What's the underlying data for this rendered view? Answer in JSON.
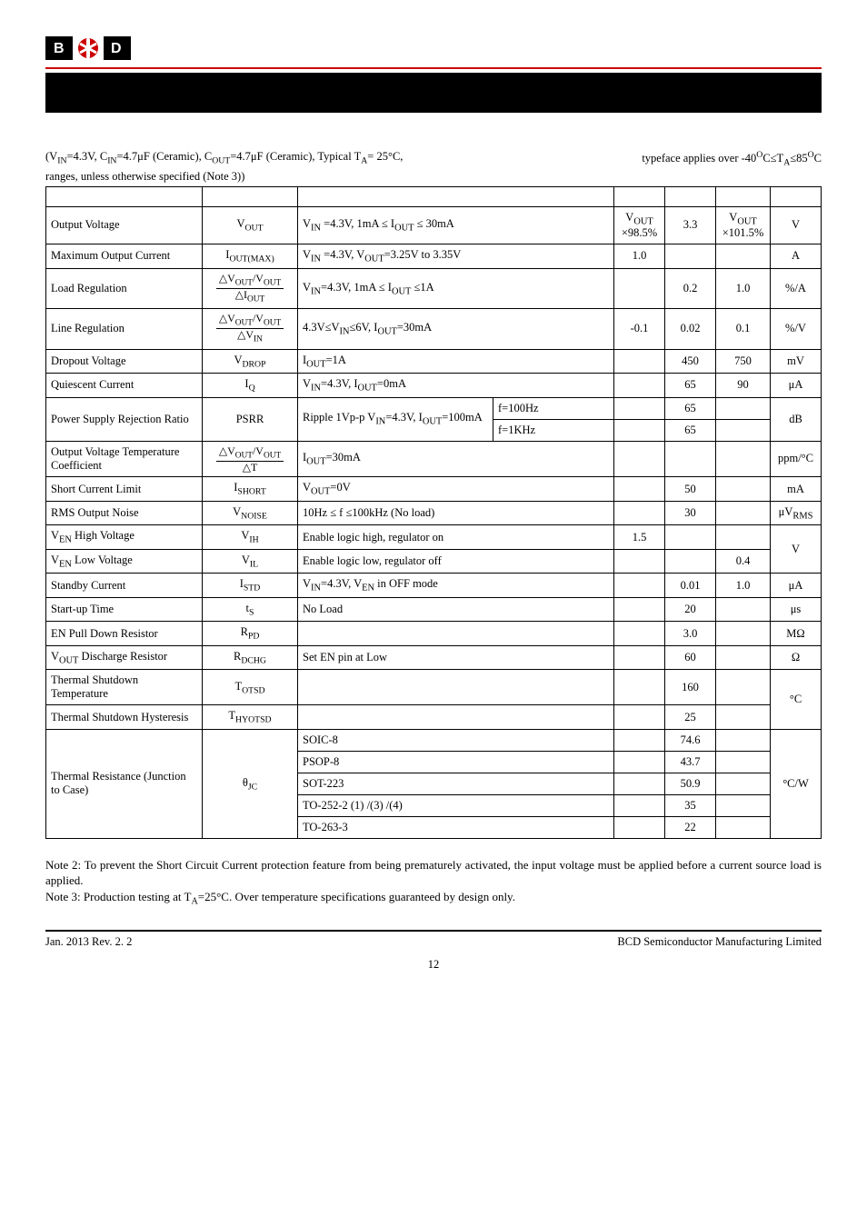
{
  "conditions_line1": "(V",
  "cond_in": "IN",
  "cond_eq1": "=4.3V, C",
  "cond_eq2": "=4.7μF (Ceramic), C",
  "cond_out": "OUT",
  "cond_eq3": "=4.7μF (Ceramic), Typical T",
  "cond_a": "A",
  "cond_eq4": "= 25°C,",
  "cond_tail": "typeface applies over -40",
  "cond_o": "O",
  "cond_tail2": "C≤T",
  "cond_tail3": "≤85",
  "cond_tail4": "C",
  "cond_note": "ranges, unless otherwise specified (Note 3))",
  "rows": {
    "r1": {
      "p": "Output Voltage",
      "s": "V",
      "ssub": "OUT",
      "c": "V<sub>IN</sub> =4.3V, 1mA ≤ I<sub>OUT</sub> ≤ 30mA",
      "min": "V<sub>OUT</sub> ×98.5%",
      "typ": "3.3",
      "max": "V<sub>OUT</sub> ×101.5%",
      "u": "V"
    },
    "r2": {
      "p": "Maximum Output Current",
      "s": "I",
      "ssub": "OUT(MAX)",
      "c": "V<sub>IN</sub> =4.3V, V<sub>OUT</sub>=3.25V to 3.35V",
      "min": "1.0",
      "typ": "",
      "max": "",
      "u": "A"
    },
    "r3": {
      "p": "Load Regulation",
      "c": "V<sub>IN</sub>=4.3V, 1mA ≤ I<sub>OUT</sub> ≤1A",
      "min": "",
      "typ": "0.2",
      "max": "1.0",
      "u": "%/A"
    },
    "r4": {
      "p": "Line Regulation",
      "c": "4.3V≤V<sub>IN</sub>≤6V, I<sub>OUT</sub>=30mA",
      "min": "-0.1",
      "typ": "0.02",
      "max": "0.1",
      "u": "%/V"
    },
    "r5": {
      "p": "Dropout Voltage",
      "s": "V",
      "ssub": "DROP",
      "c": "I<sub>OUT</sub>=1A",
      "min": "",
      "typ": "450",
      "max": "750",
      "u": "mV"
    },
    "r6": {
      "p": "Quiescent Current",
      "s": "I",
      "ssub": "Q",
      "c": "V<sub>IN</sub>=4.3V, I<sub>OUT</sub>=0mA",
      "min": "",
      "typ": "65",
      "max": "90",
      "u": "μA"
    },
    "r7": {
      "p": "Power Supply Rejection Ratio",
      "s": "PSRR",
      "c1a": "Ripple 1Vp-p V<sub>IN</sub>=4.3V, I<sub>OUT</sub>=100mA",
      "c1b": "f=100Hz",
      "c2b": "f=1KHz",
      "typ1": "65",
      "typ2": "65",
      "u": "dB"
    },
    "r8": {
      "p": "Output Voltage Temperature Coefficient",
      "c": "I<sub>OUT</sub>=30mA",
      "u": "ppm/°C"
    },
    "r9": {
      "p": "Short Current Limit",
      "s": "I",
      "ssub": "SHORT",
      "c": "V<sub>OUT</sub>=0V",
      "typ": "50",
      "u": "mA"
    },
    "r10": {
      "p": "RMS Output Noise",
      "s": "V",
      "ssub": "NOISE",
      "c": "10Hz ≤ f ≤100kHz (No load)",
      "typ": "30",
      "u": "μV<sub>RMS</sub>"
    },
    "r11": {
      "p": "V<sub>EN</sub> High Voltage",
      "s": "V",
      "ssub": "IH",
      "c": "Enable logic high, regulator on",
      "min": "1.5",
      "u": "V"
    },
    "r12": {
      "p": "V<sub>EN</sub> Low Voltage",
      "s": "V",
      "ssub": "IL",
      "c": "Enable logic low, regulator off",
      "max": "0.4"
    },
    "r13": {
      "p": "Standby Current",
      "s": "I",
      "ssub": "STD",
      "c": "V<sub>IN</sub>=4.3V, V<sub>EN</sub> in OFF mode",
      "typ": "0.01",
      "max": "1.0",
      "u": "μA"
    },
    "r14": {
      "p": "Start-up Time",
      "s": "t",
      "ssub": "S",
      "c": "No Load",
      "typ": "20",
      "u": "μs"
    },
    "r15": {
      "p": "EN Pull Down Resistor",
      "s": "R",
      "ssub": "PD",
      "typ": "3.0",
      "u": "MΩ"
    },
    "r16": {
      "p": "V<sub>OUT</sub> Discharge Resistor",
      "s": "R",
      "ssub": "DCHG",
      "c": "Set EN pin at Low",
      "typ": "60",
      "u": "Ω"
    },
    "r17": {
      "p": "Thermal Shutdown Temperature",
      "s": "T",
      "ssub": "OTSD",
      "typ": "160",
      "u": "°C"
    },
    "r18": {
      "p": "Thermal Shutdown Hysteresis",
      "s": "T",
      "ssub": "HYOTSD",
      "typ": "25"
    },
    "r19": {
      "p": "Thermal Resistance (Junction to Case)",
      "s": "θ",
      "ssub": "JC",
      "c1": "SOIC-8",
      "c2": "PSOP-8",
      "c3": "SOT-223",
      "c4": "TO-252-2 (1) /(3) /(4)",
      "c5": "TO-263-3",
      "t1": "74.6",
      "t2": "43.7",
      "t3": "50.9",
      "t4": "35",
      "t5": "22",
      "u": "°C/W"
    }
  },
  "note2": "Note 2: To prevent the Short Circuit Current protection feature from being prematurely activated, the input voltage must be applied before a current source load is applied.",
  "note3": "Note 3: Production testing at T",
  "note3b": "=25°C. Over temperature specifications guaranteed by design only.",
  "footer_left": "Jan. 2013   Rev. 2. 2",
  "footer_right": "BCD Semiconductor Manufacturing Limited",
  "pagenum": "12"
}
